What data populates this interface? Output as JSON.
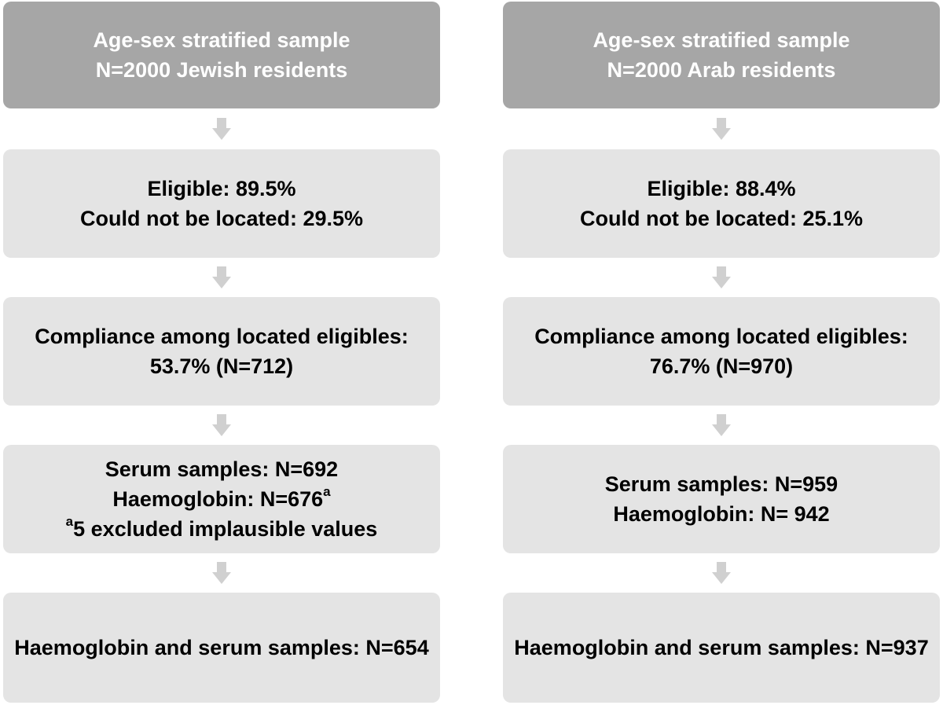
{
  "columns": [
    {
      "header": {
        "line1": "Age-sex stratified sample",
        "line2": "N=2000 Jewish residents"
      },
      "eligibility": {
        "line1": "Eligible: 89.5%",
        "line2": "Could not be located: 29.5%"
      },
      "compliance": {
        "line1": "Compliance among located eligibles:",
        "line2": "53.7% (N=712)"
      },
      "samples": {
        "line1": "Serum samples: N=692",
        "line2": "Haemoglobin: N=676",
        "line2_sup": "a",
        "line3_sup": "a",
        "line3": "5 excluded implausible values"
      },
      "final": {
        "line1": "Haemoglobin and serum samples: N=654"
      }
    },
    {
      "header": {
        "line1": "Age-sex stratified sample",
        "line2": "N=2000 Arab residents"
      },
      "eligibility": {
        "line1": "Eligible: 88.4%",
        "line2": "Could not be located: 25.1%"
      },
      "compliance": {
        "line1": "Compliance among located eligibles:",
        "line2": "76.7% (N=970)"
      },
      "samples": {
        "line1": "Serum samples: N=959",
        "line2": "Haemoglobin: N= 942"
      },
      "final": {
        "line1": "Haemoglobin and serum samples: N=937"
      }
    }
  ],
  "colors": {
    "header_fill": "#a6a6a6",
    "header_text": "#ffffff",
    "box_fill": "#e4e4e4",
    "box_text": "#000000",
    "arrow_fill": "#d0d0d0"
  }
}
